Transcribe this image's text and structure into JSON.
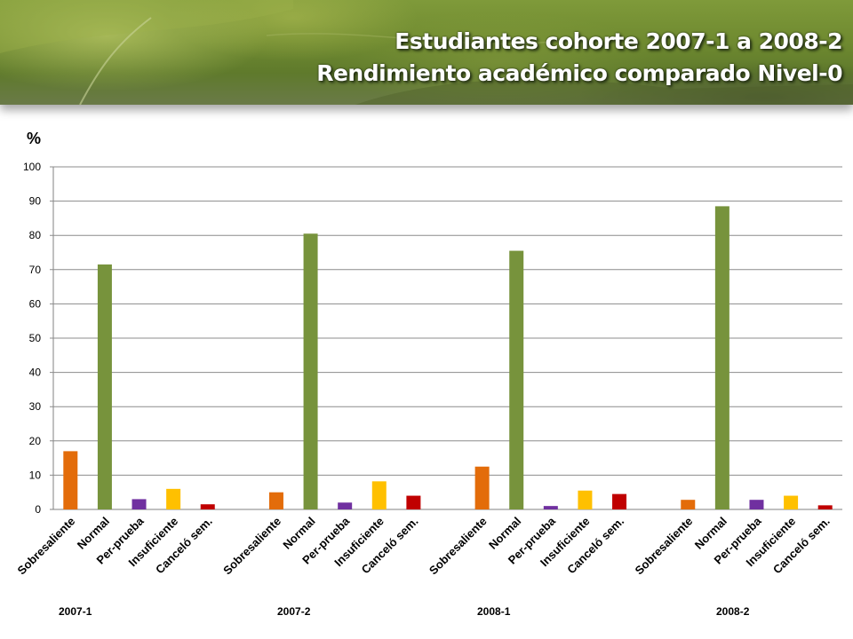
{
  "title": {
    "line1": "Estudiantes cohorte 2007-1  a 2008-2",
    "line2": "Rendimiento académico comparado Nivel-0"
  },
  "chart_data": {
    "type": "bar",
    "ylabel": "%",
    "ylim": [
      0,
      100
    ],
    "yticks": [
      0,
      10,
      20,
      30,
      40,
      50,
      60,
      70,
      80,
      90,
      100
    ],
    "grid": true,
    "groups": [
      {
        "name": "2007-1",
        "categories": [
          "Sobresaliente",
          "Normal",
          "Per-prueba",
          "Insuficiente",
          "Canceló sem."
        ],
        "values": [
          17,
          71.5,
          3,
          6,
          1.5
        ]
      },
      {
        "name": "2007-2",
        "categories": [
          "Sobresaliente",
          "Normal",
          "Per-prueba",
          "Insuficiente",
          "Canceló sem."
        ],
        "values": [
          5,
          80.5,
          2,
          8.2,
          4
        ]
      },
      {
        "name": "2008-1",
        "categories": [
          "Sobresaliente",
          "Normal",
          "Per-prueba",
          "Insuficiente",
          "Canceló sem."
        ],
        "values": [
          12.5,
          75.5,
          1,
          5.5,
          4.5
        ]
      },
      {
        "name": "2008-2",
        "categories": [
          "Sobresaliente",
          "Normal",
          "Per-prueba",
          "Insuficiente",
          "Canceló sem."
        ],
        "values": [
          2.8,
          88.5,
          2.8,
          4,
          1.2
        ]
      }
    ],
    "colors": {
      "Sobresaliente": "#e36c0a",
      "Normal": "#77933c",
      "Per-prueba": "#7030a0",
      "Insuficiente": "#ffc000",
      "Canceló sem.": "#c00000"
    }
  }
}
